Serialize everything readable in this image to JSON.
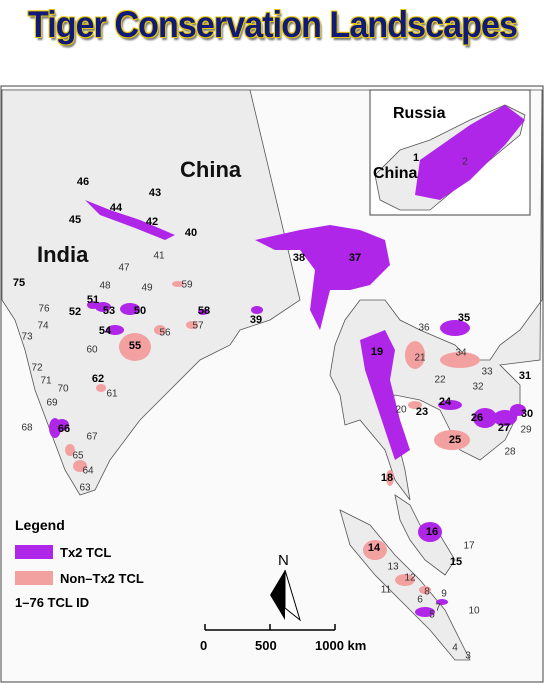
{
  "title": "Tiger Conservation Landscapes",
  "countries": [
    "China",
    "India"
  ],
  "inset": {
    "labels": [
      "Russia",
      "China"
    ]
  },
  "legend": {
    "title": "Legend",
    "items": [
      "Tx2 TCL",
      "Non–Tx2 TCL",
      "1–76 TCL ID"
    ]
  },
  "north": "N",
  "scale": [
    "0",
    "500",
    "1000 km"
  ],
  "tcl_ids": [
    "1",
    "2",
    "3",
    "4",
    "5",
    "6",
    "7",
    "8",
    "9",
    "10",
    "11",
    "12",
    "13",
    "14",
    "15",
    "16",
    "17",
    "18",
    "19",
    "20",
    "21",
    "22",
    "23",
    "24",
    "25",
    "26",
    "27",
    "28",
    "29",
    "30",
    "31",
    "32",
    "33",
    "34",
    "35",
    "36",
    "37",
    "38",
    "39",
    "40",
    "41",
    "42",
    "43",
    "44",
    "45",
    "46",
    "47",
    "48",
    "49",
    "50",
    "51",
    "52",
    "53",
    "54",
    "55",
    "56",
    "57",
    "58",
    "59",
    "60",
    "61",
    "62",
    "63",
    "64",
    "65",
    "66",
    "67",
    "68",
    "69",
    "70",
    "71",
    "72",
    "73",
    "74",
    "75",
    "76"
  ]
}
